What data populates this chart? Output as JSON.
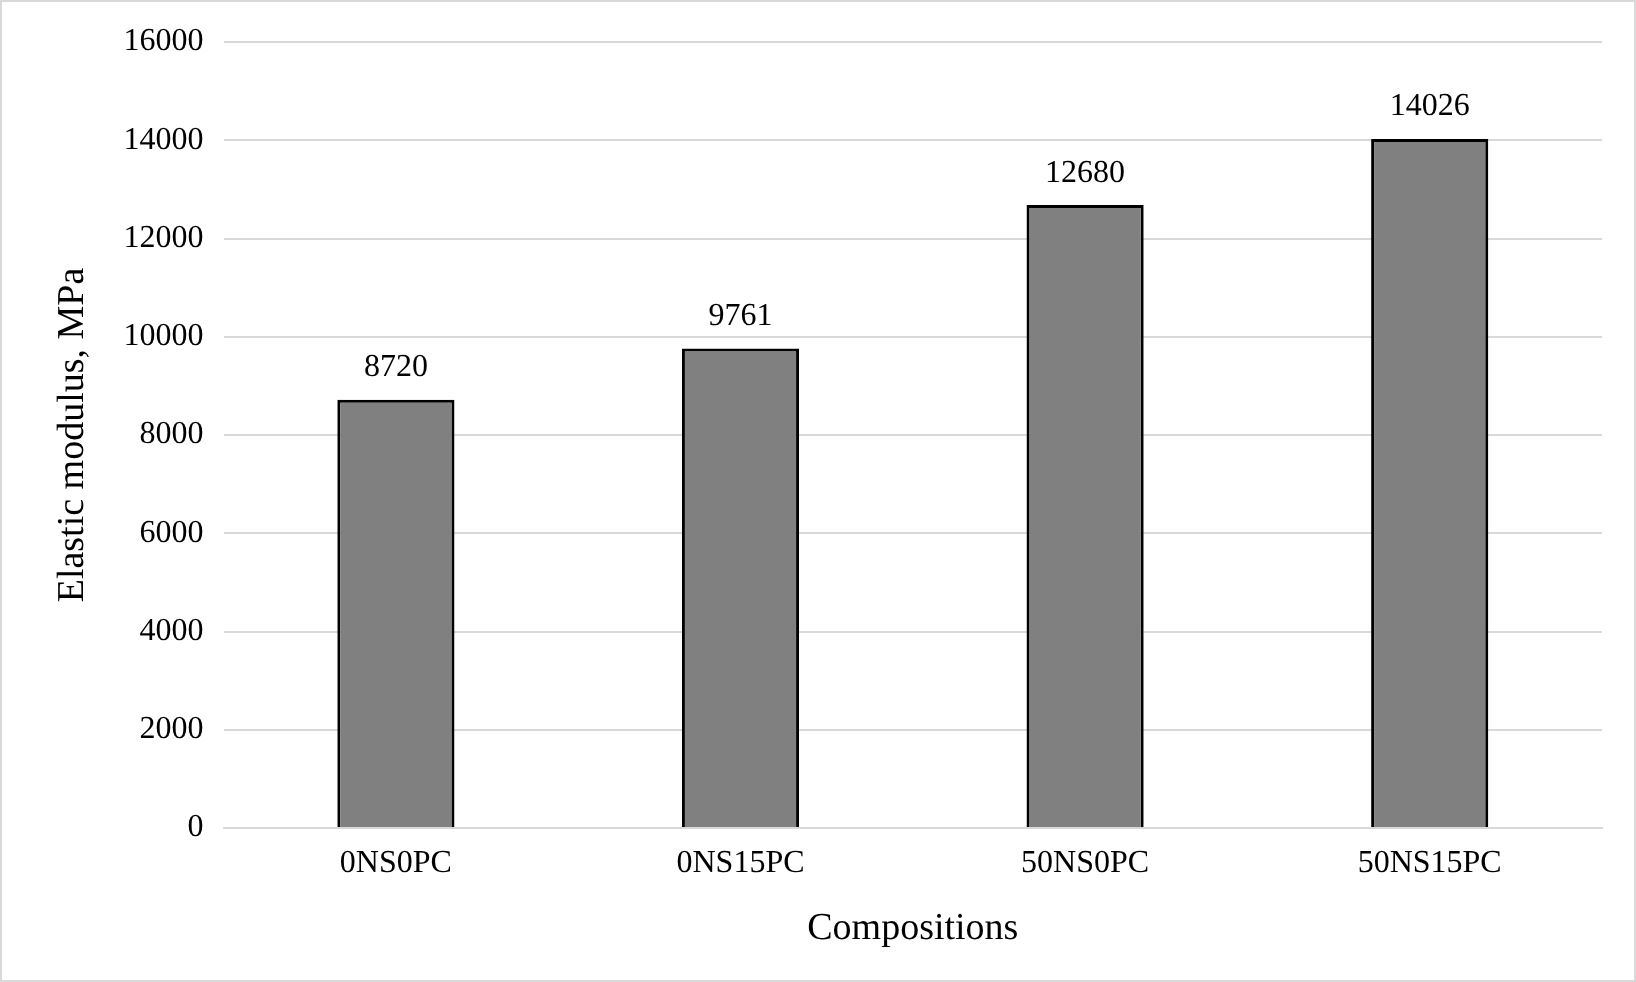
{
  "chart_data": {
    "type": "bar",
    "xlabel": "Compositions",
    "ylabel": "Elastic modulus, MPa",
    "categories": [
      "0NS0PC",
      "0NS15PC",
      "50NS0PC",
      "50NS15PC"
    ],
    "values": [
      8720,
      9761,
      12680,
      14026
    ],
    "color": "#808080",
    "ylim": [
      0,
      16000
    ],
    "yticks": [
      0,
      2000,
      4000,
      6000,
      8000,
      10000,
      12000,
      14000,
      16000
    ],
    "grid": "y",
    "legend": false,
    "data_labels": true
  }
}
